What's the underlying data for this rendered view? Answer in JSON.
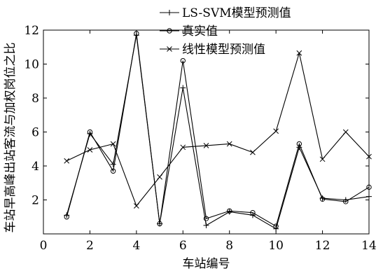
{
  "chart_data": {
    "type": "line",
    "xlabel": "车站编号",
    "ylabel": "车站早高峰出站客流与加权岗位之比",
    "xlim": [
      0,
      14
    ],
    "ylim": [
      0,
      12
    ],
    "xticks": [
      0,
      2,
      4,
      6,
      8,
      10,
      12,
      14
    ],
    "yticks": [
      2,
      4,
      6,
      8,
      10,
      12
    ],
    "x": [
      1,
      2,
      3,
      4,
      5,
      6,
      7,
      8,
      9,
      10,
      11,
      12,
      13,
      14
    ],
    "series": [
      {
        "name": "LS-SVM模型预测值",
        "marker": "plus",
        "values": [
          1.1,
          5.9,
          4.1,
          11.7,
          0.6,
          8.6,
          0.5,
          1.3,
          1.1,
          0.3,
          5.1,
          2.1,
          2.0,
          2.2
        ]
      },
      {
        "name": "真实值",
        "marker": "circle",
        "values": [
          1.0,
          6.0,
          3.7,
          11.8,
          0.6,
          10.2,
          0.9,
          1.35,
          1.25,
          0.45,
          5.3,
          2.05,
          1.9,
          2.75
        ]
      },
      {
        "name": "线性模型预测值",
        "marker": "cross",
        "values": [
          4.3,
          4.95,
          5.3,
          1.65,
          3.35,
          5.1,
          5.2,
          5.3,
          4.8,
          6.05,
          10.65,
          4.4,
          6.0,
          4.55
        ]
      }
    ],
    "grid": false,
    "legend_position": "top"
  }
}
